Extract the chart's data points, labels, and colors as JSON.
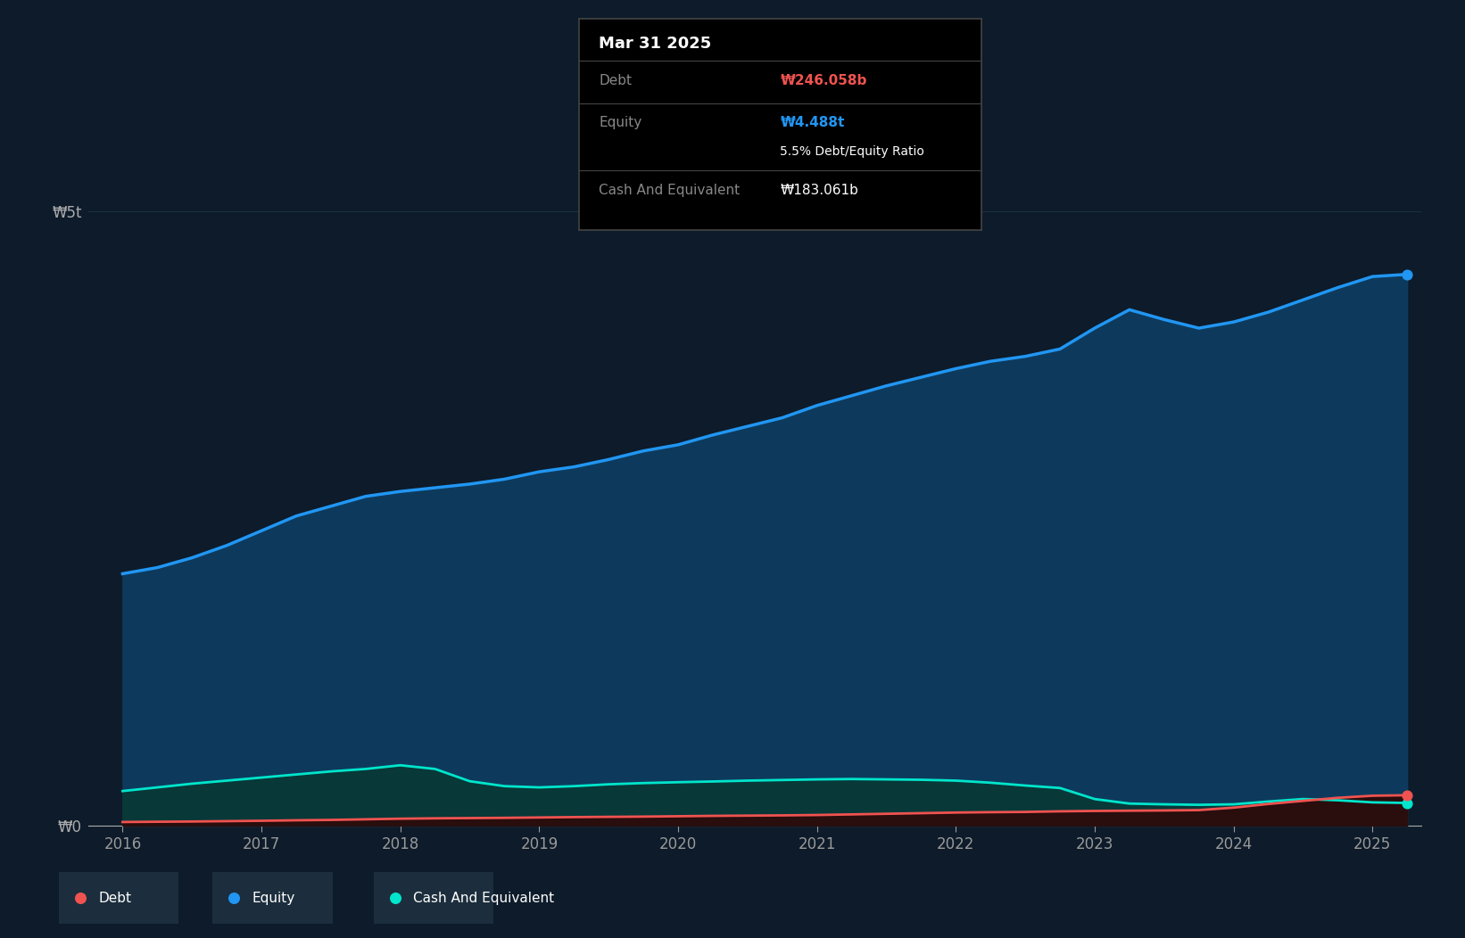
{
  "bg_color": "#0d1b2a",
  "plot_bg_color": "#0d1b2a",
  "ytick_labels": [
    "₩0",
    "₩5t"
  ],
  "x_labels": [
    "2016",
    "2017",
    "2018",
    "2019",
    "2020",
    "2021",
    "2022",
    "2023",
    "2024",
    "2025"
  ],
  "ylim_max": 5500000000000.0,
  "grid_color": "#253d4e",
  "line_color_equity": "#2196f3",
  "fill_color_equity": "#0d3a5c",
  "line_color_debt": "#ef5350",
  "fill_color_debt": "#2a0d0d",
  "line_color_cash": "#00e5cc",
  "fill_color_cash": "#083838",
  "tooltip_bg": "#000000",
  "tooltip_border": "#444444",
  "tooltip_title": "Mar 31 2025",
  "tooltip_debt_label": "Debt",
  "tooltip_debt_value": "₩246.058b",
  "tooltip_debt_color": "#ef5350",
  "tooltip_equity_label": "Equity",
  "tooltip_equity_value": "₩4.488t",
  "tooltip_equity_color": "#2196f3",
  "tooltip_ratio": "5.5% Debt/Equity Ratio",
  "tooltip_cash_label": "Cash And Equivalent",
  "tooltip_cash_value": "₩183.061b",
  "legend_debt": "Debt",
  "legend_equity": "Equity",
  "legend_cash": "Cash And Equivalent",
  "equity_years": [
    2016.0,
    2016.25,
    2016.5,
    2016.75,
    2017.0,
    2017.25,
    2017.5,
    2017.75,
    2018.0,
    2018.25,
    2018.5,
    2018.75,
    2019.0,
    2019.25,
    2019.5,
    2019.75,
    2020.0,
    2020.25,
    2020.5,
    2020.75,
    2021.0,
    2021.25,
    2021.5,
    2021.75,
    2022.0,
    2022.25,
    2022.5,
    2022.75,
    2023.0,
    2023.25,
    2023.5,
    2023.75,
    2024.0,
    2024.25,
    2024.5,
    2024.75,
    2025.0,
    2025.25
  ],
  "equity_values": [
    2050000000000.0,
    2100000000000.0,
    2180000000000.0,
    2280000000000.0,
    2400000000000.0,
    2520000000000.0,
    2600000000000.0,
    2680000000000.0,
    2720000000000.0,
    2750000000000.0,
    2780000000000.0,
    2820000000000.0,
    2880000000000.0,
    2920000000000.0,
    2980000000000.0,
    3050000000000.0,
    3100000000000.0,
    3180000000000.0,
    3250000000000.0,
    3320000000000.0,
    3420000000000.0,
    3500000000000.0,
    3580000000000.0,
    3650000000000.0,
    3720000000000.0,
    3780000000000.0,
    3820000000000.0,
    3880000000000.0,
    4050000000000.0,
    4200000000000.0,
    4120000000000.0,
    4050000000000.0,
    4100000000000.0,
    4180000000000.0,
    4280000000000.0,
    4380000000000.0,
    4470000000000.0,
    4488000000000.0
  ],
  "debt_years": [
    2016.0,
    2016.25,
    2016.5,
    2016.75,
    2017.0,
    2017.25,
    2017.5,
    2017.75,
    2018.0,
    2018.25,
    2018.5,
    2018.75,
    2019.0,
    2019.25,
    2019.5,
    2019.75,
    2020.0,
    2020.25,
    2020.5,
    2020.75,
    2021.0,
    2021.25,
    2021.5,
    2021.75,
    2022.0,
    2022.25,
    2022.5,
    2022.75,
    2023.0,
    2023.25,
    2023.5,
    2023.75,
    2024.0,
    2024.25,
    2024.5,
    2024.75,
    2025.0,
    2025.25
  ],
  "debt_values": [
    28000000000.0,
    30000000000.0,
    32000000000.0,
    35000000000.0,
    38000000000.0,
    42000000000.0,
    45000000000.0,
    50000000000.0,
    55000000000.0,
    58000000000.0,
    60000000000.0,
    62000000000.0,
    65000000000.0,
    68000000000.0,
    70000000000.0,
    72000000000.0,
    75000000000.0,
    78000000000.0,
    80000000000.0,
    82000000000.0,
    85000000000.0,
    90000000000.0,
    95000000000.0,
    100000000000.0,
    105000000000.0,
    108000000000.0,
    110000000000.0,
    115000000000.0,
    118000000000.0,
    120000000000.0,
    122000000000.0,
    125000000000.0,
    145000000000.0,
    175000000000.0,
    200000000000.0,
    225000000000.0,
    242000000000.0,
    246058000000.0
  ],
  "cash_years": [
    2016.0,
    2016.25,
    2016.5,
    2016.75,
    2017.0,
    2017.25,
    2017.5,
    2017.75,
    2018.0,
    2018.25,
    2018.5,
    2018.75,
    2019.0,
    2019.25,
    2019.5,
    2019.75,
    2020.0,
    2020.25,
    2020.5,
    2020.75,
    2021.0,
    2021.25,
    2021.5,
    2021.75,
    2022.0,
    2022.25,
    2022.5,
    2022.75,
    2023.0,
    2023.25,
    2023.5,
    2023.75,
    2024.0,
    2024.25,
    2024.5,
    2024.75,
    2025.0,
    2025.25
  ],
  "cash_values": [
    280000000000.0,
    310000000000.0,
    340000000000.0,
    365000000000.0,
    390000000000.0,
    415000000000.0,
    440000000000.0,
    460000000000.0,
    490000000000.0,
    460000000000.0,
    360000000000.0,
    320000000000.0,
    310000000000.0,
    320000000000.0,
    335000000000.0,
    345000000000.0,
    352000000000.0,
    358000000000.0,
    365000000000.0,
    370000000000.0,
    375000000000.0,
    378000000000.0,
    375000000000.0,
    372000000000.0,
    365000000000.0,
    348000000000.0,
    325000000000.0,
    305000000000.0,
    215000000000.0,
    178000000000.0,
    172000000000.0,
    168000000000.0,
    172000000000.0,
    195000000000.0,
    215000000000.0,
    205000000000.0,
    188000000000.0,
    183061000000.0
  ]
}
